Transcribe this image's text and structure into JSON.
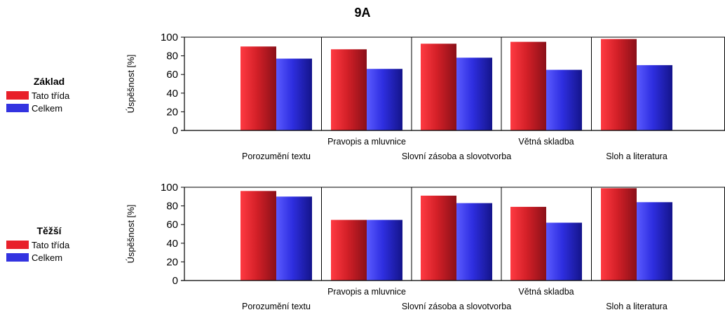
{
  "page": {
    "title": "9A"
  },
  "colors": {
    "tato": "#e8202a",
    "celkem": "#3333e0"
  },
  "chart_data": [
    {
      "type": "bar",
      "group_title": "Základ",
      "ylabel": "Úspěšnost [%]",
      "ylim": [
        0,
        100
      ],
      "yticks": [
        0,
        20,
        40,
        60,
        80,
        100
      ],
      "categories": [
        "Porozumění textu",
        "Pravopis a mluvnice",
        "Slovní zásoba a slovotvorba",
        "Větná skladba",
        "Sloh a literatura"
      ],
      "series": [
        {
          "name": "Tato třída",
          "values": [
            90,
            87,
            93,
            95,
            98
          ]
        },
        {
          "name": "Celkem",
          "values": [
            77,
            66,
            78,
            65,
            70
          ]
        }
      ],
      "grid": "vertical"
    },
    {
      "type": "bar",
      "group_title": "Těžší",
      "ylabel": "Úspěšnost [%]",
      "ylim": [
        0,
        100
      ],
      "yticks": [
        0,
        20,
        40,
        60,
        80,
        100
      ],
      "categories": [
        "Porozumění textu",
        "Pravopis a mluvnice",
        "Slovní zásoba a slovotvorba",
        "Větná skladba",
        "Sloh a literatura"
      ],
      "series": [
        {
          "name": "Tato třída",
          "values": [
            96,
            65,
            91,
            79,
            99
          ]
        },
        {
          "name": "Celkem",
          "values": [
            90,
            65,
            83,
            62,
            84
          ]
        }
      ],
      "grid": "vertical"
    }
  ]
}
